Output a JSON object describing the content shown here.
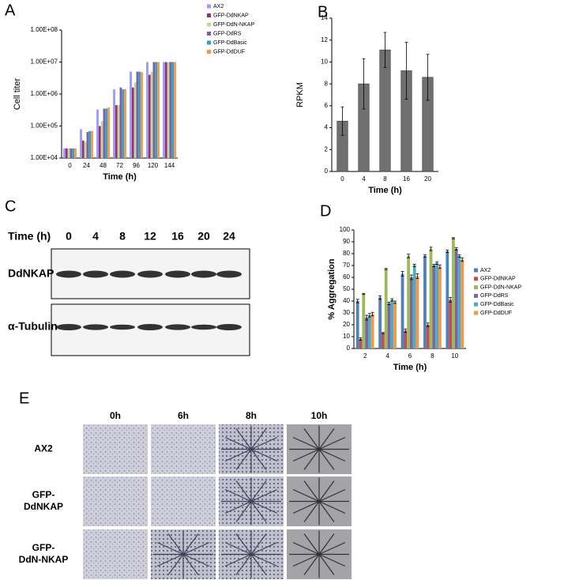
{
  "chart_data": [
    {
      "type": "bar",
      "panel": "A",
      "log_y": true,
      "x_label": "Time (h)",
      "y_label": "Cell titer",
      "categories": [
        "0",
        "24",
        "48",
        "72",
        "96",
        "120",
        "144"
      ],
      "ylim": [
        10000,
        100000000
      ],
      "yticks": [
        {
          "value": 10000,
          "label": "1.00E+04"
        },
        {
          "value": 100000,
          "label": "1.00E+05"
        },
        {
          "value": 1000000,
          "label": "1.00E+06"
        },
        {
          "value": 10000000,
          "label": "1.00E+07"
        },
        {
          "value": 100000000,
          "label": "1.00E+08"
        }
      ],
      "legend": "right",
      "series": [
        {
          "name": "AX2",
          "color": "#9999ff",
          "values": [
            20000,
            80000,
            330000,
            1400000,
            5000000,
            10000000,
            10000000
          ]
        },
        {
          "name": "GFP-DdNKAP",
          "color": "#993366",
          "values": [
            20000,
            35000,
            100000,
            450000,
            1600000,
            4000000,
            10000000
          ]
        },
        {
          "name": "GFP-DdN-NKAP",
          "color": "#c4d79b",
          "values": [
            20000,
            32000,
            140000,
            450000,
            2300000,
            5000000,
            10000000
          ]
        },
        {
          "name": "GFP-DdRS",
          "color": "#7f5fa7",
          "values": [
            20000,
            65000,
            350000,
            1600000,
            5000000,
            10000000,
            10000000
          ]
        },
        {
          "name": "GFP-DdBasic",
          "color": "#33a0c8",
          "values": [
            20000,
            70000,
            350000,
            1400000,
            5000000,
            10000000,
            10000000
          ]
        },
        {
          "name": "GFP-DdDUF",
          "color": "#f79646",
          "values": [
            20000,
            70000,
            380000,
            1400000,
            4800000,
            10000000,
            10000000
          ]
        }
      ]
    },
    {
      "type": "bar",
      "panel": "B",
      "x_label": "Time (h)",
      "y_label": "RPKM",
      "categories": [
        "0",
        "4",
        "8",
        "16",
        "20"
      ],
      "values": [
        4.6,
        8.0,
        11.1,
        9.2,
        8.6
      ],
      "errors": [
        1.3,
        2.3,
        1.6,
        2.6,
        2.1
      ],
      "color": "#707070",
      "ylim": [
        0,
        14
      ],
      "yticks": [
        0,
        2,
        4,
        6,
        8,
        10,
        12,
        14
      ]
    },
    {
      "type": "bar",
      "panel": "D",
      "x_label": "Time (h)",
      "y_label": "% Aggregation",
      "categories": [
        "2",
        "4",
        "6",
        "8",
        "10"
      ],
      "ylim": [
        0,
        100
      ],
      "yticks": [
        0,
        10,
        20,
        30,
        40,
        50,
        60,
        70,
        80,
        90,
        100
      ],
      "legend": "right",
      "series": [
        {
          "name": "AX2",
          "color": "#4f81bd",
          "values": [
            40,
            43,
            63,
            78,
            82
          ],
          "errors": [
            1.5,
            1.5,
            2,
            1,
            1
          ]
        },
        {
          "name": "GFP-DdNKAP",
          "color": "#c0504d",
          "values": [
            8,
            13,
            15,
            20,
            41
          ],
          "errors": [
            1,
            0.5,
            1.5,
            1.5,
            2
          ]
        },
        {
          "name": "GFP-DdN-NKAP",
          "color": "#9bbb59",
          "values": [
            46,
            67,
            78,
            84,
            93
          ],
          "errors": [
            0.5,
            0.5,
            1.5,
            1.5,
            0.5
          ]
        },
        {
          "name": "GFP-DdRS",
          "color": "#8064a2",
          "values": [
            26,
            38,
            60,
            70,
            84
          ],
          "errors": [
            2,
            1,
            2,
            1,
            1
          ]
        },
        {
          "name": "GFP-DdBasic",
          "color": "#4bacc6",
          "values": [
            28,
            41,
            70,
            72,
            78
          ],
          "errors": [
            1.5,
            1,
            1,
            1,
            1
          ]
        },
        {
          "name": "GFP-DdDUF",
          "color": "#f79646",
          "values": [
            29,
            39,
            61,
            69,
            75
          ],
          "errors": [
            1.5,
            1,
            2,
            1.5,
            1.5
          ]
        }
      ]
    }
  ],
  "blot": {
    "panel": "C",
    "time_label": "Time (h)",
    "lanes": [
      "0",
      "4",
      "8",
      "12",
      "16",
      "20",
      "24"
    ],
    "rows": [
      "DdNKAP",
      "α-Tubulin"
    ]
  },
  "micrographs": {
    "panel": "E",
    "columns": [
      "0h",
      "6h",
      "8h",
      "10h"
    ],
    "rows": [
      [
        "AX2"
      ],
      [
        "GFP-",
        "DdNKAP"
      ],
      [
        "GFP-",
        "DdN-NKAP"
      ]
    ]
  }
}
